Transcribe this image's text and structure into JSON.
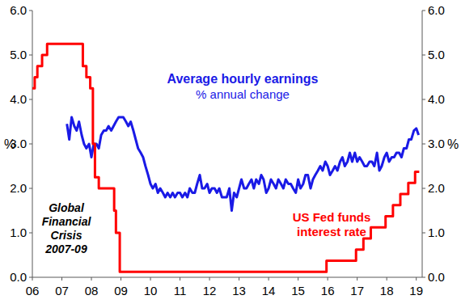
{
  "chart_data": {
    "type": "line",
    "ylabel": "%",
    "y2label": "%",
    "xlim": [
      2006,
      2019.2
    ],
    "xticks": [
      {
        "value": 2006,
        "label": "06"
      },
      {
        "value": 2007,
        "label": "07"
      },
      {
        "value": 2008,
        "label": "08"
      },
      {
        "value": 2009,
        "label": "09"
      },
      {
        "value": 2010,
        "label": "10"
      },
      {
        "value": 2011,
        "label": "11"
      },
      {
        "value": 2012,
        "label": "12"
      },
      {
        "value": 2013,
        "label": "13"
      },
      {
        "value": 2014,
        "label": "14"
      },
      {
        "value": 2015,
        "label": "15"
      },
      {
        "value": 2016,
        "label": "16"
      },
      {
        "value": 2017,
        "label": "17"
      },
      {
        "value": 2018,
        "label": "18"
      },
      {
        "value": 2019,
        "label": "19"
      }
    ],
    "ylim": [
      0,
      6
    ],
    "yticks": [
      {
        "value": 0,
        "label": "0.0"
      },
      {
        "value": 1,
        "label": "1.0"
      },
      {
        "value": 2,
        "label": "2.0"
      },
      {
        "value": 3,
        "label": "3.0"
      },
      {
        "value": 4,
        "label": "4.0"
      },
      {
        "value": 5,
        "label": "5.0"
      },
      {
        "value": 6,
        "label": "6.0"
      }
    ],
    "y2lim": [
      0,
      6
    ],
    "y2ticks": [
      {
        "value": 0,
        "label": "0.0"
      },
      {
        "value": 1,
        "label": "1.0"
      },
      {
        "value": 2,
        "label": "2.0"
      },
      {
        "value": 3,
        "label": "3.0"
      },
      {
        "value": 4,
        "label": "4.0"
      },
      {
        "value": 5,
        "label": "5.0"
      },
      {
        "value": 6,
        "label": "6.0"
      }
    ],
    "grid": false,
    "annotations": [
      "% annual change",
      "Global Financial Crisis 2007-09"
    ],
    "series": [
      {
        "name": "Average hourly earnings",
        "color": "#1a1ae6",
        "x": [
          2007.17,
          2007.25,
          2007.33,
          2007.42,
          2007.5,
          2007.58,
          2007.67,
          2007.75,
          2007.83,
          2007.92,
          2008,
          2008.08,
          2008.17,
          2008.25,
          2008.33,
          2008.42,
          2008.5,
          2008.58,
          2008.67,
          2008.75,
          2008.83,
          2008.92,
          2009,
          2009.08,
          2009.17,
          2009.25,
          2009.33,
          2009.42,
          2009.5,
          2009.58,
          2009.67,
          2009.75,
          2009.83,
          2009.92,
          2010,
          2010.08,
          2010.17,
          2010.25,
          2010.33,
          2010.42,
          2010.5,
          2010.58,
          2010.67,
          2010.75,
          2010.83,
          2010.92,
          2011,
          2011.08,
          2011.17,
          2011.25,
          2011.33,
          2011.42,
          2011.5,
          2011.58,
          2011.67,
          2011.75,
          2011.83,
          2011.92,
          2012,
          2012.08,
          2012.17,
          2012.25,
          2012.33,
          2012.42,
          2012.5,
          2012.58,
          2012.67,
          2012.75,
          2012.83,
          2012.92,
          2013,
          2013.08,
          2013.17,
          2013.25,
          2013.33,
          2013.42,
          2013.5,
          2013.58,
          2013.67,
          2013.75,
          2013.83,
          2013.92,
          2014,
          2014.08,
          2014.17,
          2014.25,
          2014.33,
          2014.42,
          2014.5,
          2014.58,
          2014.67,
          2014.75,
          2014.83,
          2014.92,
          2015,
          2015.08,
          2015.17,
          2015.25,
          2015.33,
          2015.42,
          2015.5,
          2015.58,
          2015.67,
          2015.75,
          2015.83,
          2015.92,
          2016,
          2016.08,
          2016.17,
          2016.25,
          2016.33,
          2016.42,
          2016.5,
          2016.58,
          2016.67,
          2016.75,
          2016.83,
          2016.92,
          2017,
          2017.08,
          2017.17,
          2017.25,
          2017.33,
          2017.42,
          2017.5,
          2017.58,
          2017.67,
          2017.75,
          2017.83,
          2017.92,
          2018,
          2018.08,
          2018.17,
          2018.25,
          2018.33,
          2018.42,
          2018.5,
          2018.58,
          2018.67,
          2018.75,
          2018.83,
          2018.92,
          2019,
          2019.08
        ],
        "values": [
          3.45,
          3.1,
          3.6,
          3.4,
          3.3,
          3.5,
          3.2,
          3.0,
          2.9,
          3.0,
          2.7,
          3.0,
          3.0,
          2.9,
          3.2,
          3.3,
          3.3,
          3.4,
          3.3,
          3.4,
          3.5,
          3.6,
          3.6,
          3.6,
          3.5,
          3.4,
          3.5,
          3.3,
          3.1,
          2.9,
          2.8,
          2.7,
          2.5,
          2.3,
          2.1,
          2.0,
          2.1,
          1.9,
          2.0,
          1.9,
          1.8,
          1.9,
          1.8,
          1.9,
          1.8,
          1.9,
          1.9,
          1.8,
          1.9,
          1.8,
          2.0,
          1.9,
          1.9,
          2.1,
          2.3,
          2.0,
          2.0,
          2.1,
          1.9,
          2.0,
          2.0,
          1.9,
          2.0,
          1.8,
          1.8,
          1.8,
          2.0,
          1.5,
          1.9,
          1.8,
          2.0,
          2.2,
          2.0,
          2.0,
          2.1,
          2.2,
          2.0,
          2.2,
          2.1,
          2.3,
          2.2,
          1.9,
          2.0,
          2.2,
          2.1,
          2.0,
          2.2,
          2.1,
          2.0,
          2.2,
          2.1,
          2.1,
          2.0,
          1.9,
          2.2,
          2.0,
          2.1,
          2.3,
          2.3,
          2.0,
          2.2,
          2.3,
          2.4,
          2.5,
          2.4,
          2.6,
          2.5,
          2.3,
          2.4,
          2.5,
          2.4,
          2.6,
          2.7,
          2.5,
          2.6,
          2.8,
          2.6,
          2.8,
          2.6,
          2.7,
          2.6,
          2.5,
          2.5,
          2.6,
          2.6,
          2.5,
          2.8,
          2.4,
          2.5,
          2.7,
          2.8,
          2.6,
          2.7,
          2.7,
          2.8,
          2.8,
          2.7,
          2.9,
          2.9,
          3.1,
          3.1,
          3.3,
          3.35,
          3.2
        ]
      },
      {
        "name": "US Fed funds interest rate",
        "color": "#ff0000",
        "axis": "y2",
        "x": [
          2006,
          2006.08,
          2006.08,
          2006.17,
          2006.17,
          2006.33,
          2006.33,
          2006.5,
          2006.5,
          2007.71,
          2007.71,
          2007.83,
          2007.83,
          2007.96,
          2007.96,
          2008.05,
          2008.05,
          2008.12,
          2008.12,
          2008.25,
          2008.25,
          2008.77,
          2008.77,
          2008.83,
          2008.83,
          2008.96,
          2008.96,
          2015.96,
          2015.96,
          2016.96,
          2016.96,
          2017.21,
          2017.21,
          2017.46,
          2017.46,
          2017.96,
          2017.96,
          2018.21,
          2018.21,
          2018.46,
          2018.46,
          2018.73,
          2018.73,
          2018.96,
          2018.96,
          2019.1
        ],
        "values": [
          4.25,
          4.25,
          4.5,
          4.5,
          4.75,
          4.75,
          5.0,
          5.0,
          5.25,
          5.25,
          4.75,
          4.75,
          4.5,
          4.5,
          4.25,
          4.25,
          3.0,
          3.0,
          2.25,
          2.25,
          2.0,
          2.0,
          1.5,
          1.5,
          1.0,
          1.0,
          0.125,
          0.125,
          0.375,
          0.375,
          0.625,
          0.625,
          0.875,
          0.875,
          1.125,
          1.125,
          1.375,
          1.375,
          1.625,
          1.625,
          1.875,
          1.875,
          2.125,
          2.125,
          2.375,
          2.375
        ]
      }
    ]
  }
}
